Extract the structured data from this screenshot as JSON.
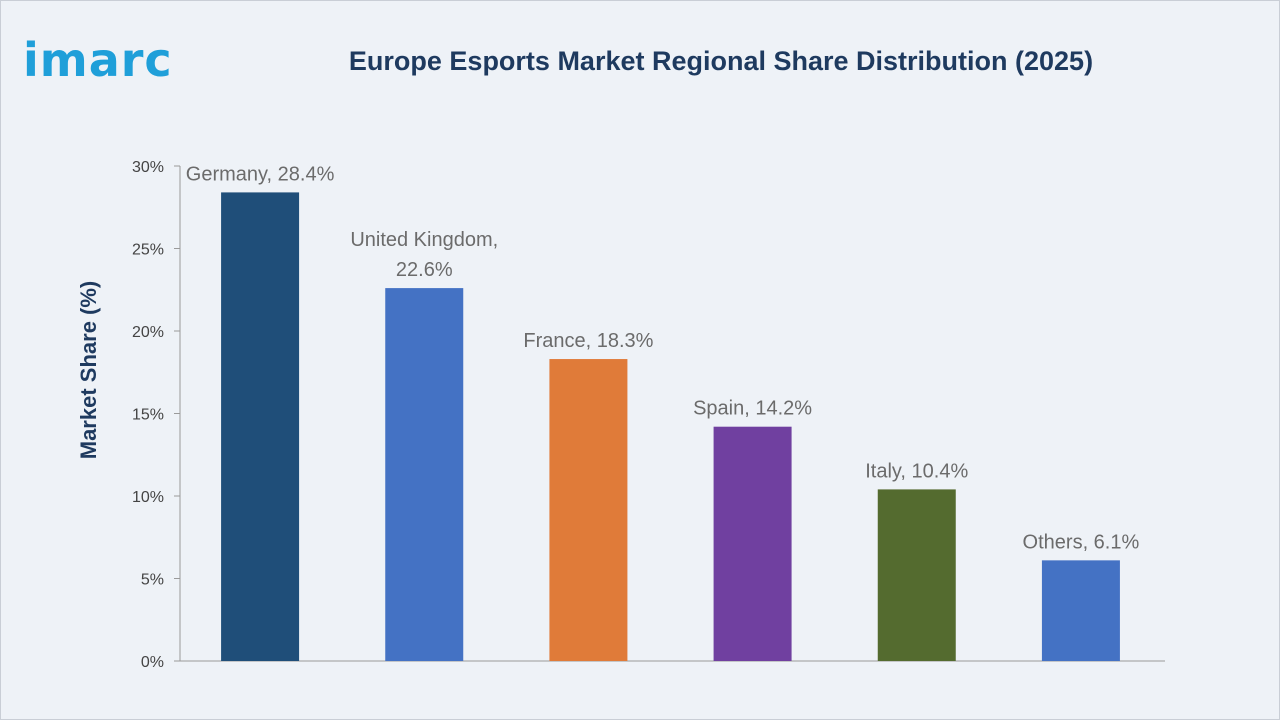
{
  "brand": {
    "logo_text": "imarc"
  },
  "chart_data": {
    "type": "bar",
    "title": "Europe Esports Market Regional Share Distribution (2025)",
    "xlabel": "",
    "ylabel": "Market Share (%)",
    "ylim": [
      0,
      30
    ],
    "yticks": [
      0,
      5,
      10,
      15,
      20,
      25,
      30
    ],
    "ytick_labels": [
      "0%",
      "5%",
      "10%",
      "15%",
      "20%",
      "25%",
      "30%"
    ],
    "grid": false,
    "categories": [
      "Germany",
      "United Kingdom",
      "France",
      "Spain",
      "Italy",
      "Others"
    ],
    "values": [
      28.4,
      22.6,
      18.3,
      14.2,
      10.4,
      6.1
    ],
    "data_labels": [
      [
        "Germany, 28.4%"
      ],
      [
        "United Kingdom,",
        "22.6%"
      ],
      [
        "France, 18.3%"
      ],
      [
        "Spain, 14.2%"
      ],
      [
        "Italy, 10.4%"
      ],
      [
        "Others, 6.1%"
      ]
    ],
    "colors": [
      "#1f4e79",
      "#4472c4",
      "#e07b39",
      "#7040a0",
      "#546b2f",
      "#4472c4"
    ]
  }
}
